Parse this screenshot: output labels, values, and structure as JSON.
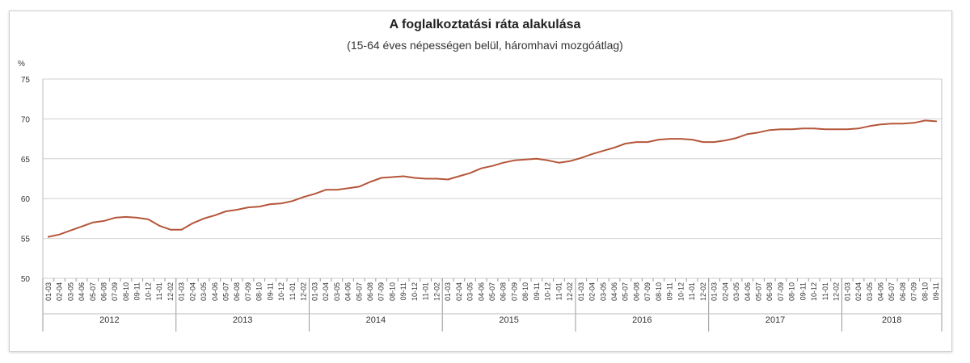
{
  "chart_data": {
    "type": "line",
    "title": "A foglalkoztatási ráta alakulása",
    "subtitle": "(15-64 éves népességen belül, háromhavi mozgóátlag)",
    "ylabel": "%",
    "ylim": [
      50,
      75
    ],
    "yticks": [
      50,
      55,
      60,
      65,
      70,
      75
    ],
    "grid": true,
    "line_color": "#b5563a",
    "month_labels": [
      "01-03",
      "02-04",
      "03-05",
      "04-06",
      "05-07",
      "06-08",
      "07-09",
      "08-10",
      "09-11",
      "10-12",
      "11-01",
      "12-02"
    ],
    "years": [
      "2012",
      "2013",
      "2014",
      "2015",
      "2016",
      "2017",
      "2018"
    ],
    "last_year_month_count": 9,
    "values": [
      55.2,
      55.5,
      56.0,
      56.5,
      57.0,
      57.2,
      57.6,
      57.7,
      57.6,
      57.4,
      56.6,
      56.1,
      56.1,
      56.9,
      57.5,
      57.9,
      58.4,
      58.6,
      58.9,
      59.0,
      59.3,
      59.4,
      59.7,
      60.2,
      60.6,
      61.1,
      61.1,
      61.3,
      61.5,
      62.1,
      62.6,
      62.7,
      62.8,
      62.6,
      62.5,
      62.5,
      62.4,
      62.8,
      63.2,
      63.8,
      64.1,
      64.5,
      64.8,
      64.9,
      65.0,
      64.8,
      64.5,
      64.7,
      65.1,
      65.6,
      66.0,
      66.4,
      66.9,
      67.1,
      67.1,
      67.4,
      67.5,
      67.5,
      67.4,
      67.1,
      67.1,
      67.3,
      67.6,
      68.1,
      68.3,
      68.6,
      68.7,
      68.7,
      68.8,
      68.8,
      68.7,
      68.7,
      68.7,
      68.8,
      69.1,
      69.3,
      69.4,
      69.4,
      69.5,
      69.8,
      69.7
    ]
  }
}
